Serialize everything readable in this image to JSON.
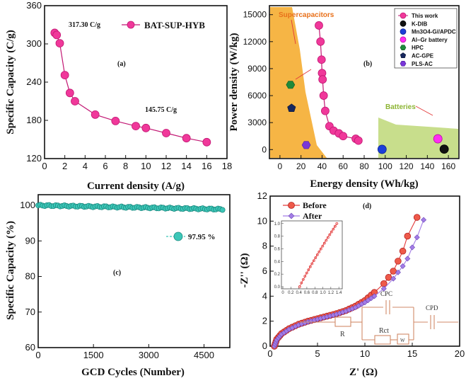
{
  "colors": {
    "pink": "#f0389a",
    "pink_dark": "#c21773",
    "orange_fill": "#f6b545",
    "green_fill": "#c8de8c",
    "teal": "#3cc7b8",
    "red": "#e33a3a",
    "purple": "#a37ce6",
    "black": "#111111",
    "blue": "#1c3fd9",
    "magenta": "#ff2df2",
    "dgreen": "#1f8a3a",
    "navy": "#17275e",
    "violet": "#7a36d8"
  },
  "chart_data": [
    {
      "id": "a",
      "type": "line",
      "panel_label": "(a)",
      "xlabel": "Current density (A/g)",
      "ylabel": "Specific Capacity (C/g)",
      "xlim": [
        0,
        18
      ],
      "ylim": [
        120,
        360
      ],
      "xticks": [
        "0",
        "2",
        "4",
        "6",
        "8",
        "10",
        "12",
        "14",
        "16",
        "18"
      ],
      "yticks": [
        "120",
        "180",
        "240",
        "300",
        "360"
      ],
      "series": [
        {
          "name": "BAT-SUP-HYB",
          "x": [
            1,
            1.2,
            1.5,
            2,
            2.5,
            3,
            5,
            7,
            9,
            10,
            12,
            14,
            16
          ],
          "y": [
            317.3,
            314,
            301,
            251,
            223,
            210,
            189,
            179,
            171,
            168,
            160,
            152,
            145.75
          ]
        }
      ],
      "legend": [
        "BAT-SUP-HYB"
      ],
      "annotations": [
        "317.30 C/g",
        "145.75 C/g"
      ]
    },
    {
      "id": "b",
      "type": "scatter",
      "panel_label": "(b)",
      "xlabel": "Energy density (Wh/kg)",
      "ylabel": "Power density (W/kg)",
      "xlim": [
        -10,
        170
      ],
      "ylim": [
        -1000,
        16000
      ],
      "xticks": [
        "0",
        "20",
        "40",
        "60",
        "80",
        "100",
        "120",
        "140",
        "160"
      ],
      "yticks": [
        "0",
        "3000",
        "6000",
        "9000",
        "12000",
        "15000"
      ],
      "regions": [
        "Supercapacitors",
        "Batteries"
      ],
      "series": [
        {
          "name": "This work",
          "x": [
            37,
            38.5,
            39.5,
            40,
            40.5,
            41.5,
            43,
            47,
            51,
            56,
            60,
            72,
            74.5
          ],
          "y": [
            13800,
            12000,
            10000,
            8500,
            7800,
            6000,
            4300,
            2600,
            2100,
            1800,
            1500,
            1200,
            1000
          ]
        },
        {
          "name": "K-DIB",
          "x": [
            156
          ],
          "y": [
            50
          ]
        },
        {
          "name": "Mn3O4-G//APDC",
          "x": [
            97
          ],
          "y": [
            30
          ]
        },
        {
          "name": "Al–Gr battery",
          "x": [
            150
          ],
          "y": [
            1200
          ]
        },
        {
          "name": "HPC",
          "x": [
            10
          ],
          "y": [
            7200
          ]
        },
        {
          "name": "AC-GPE",
          "x": [
            11
          ],
          "y": [
            4600
          ]
        },
        {
          "name": "PLS-AC",
          "x": [
            25
          ],
          "y": [
            500
          ]
        }
      ],
      "legend": [
        "This work",
        "K-DIB",
        "Mn3O4-G//APDC",
        "Al–Gr battery",
        "HPC",
        "AC-GPE",
        "PLS-AC"
      ]
    },
    {
      "id": "c",
      "type": "scatter",
      "panel_label": "(c)",
      "xlabel": "GCD Cycles (Number)",
      "ylabel": "Specific Capacity  (%)",
      "xlim": [
        0,
        5200
      ],
      "ylim": [
        60,
        103
      ],
      "xticks": [
        "0",
        "1500",
        "3000",
        "4500"
      ],
      "yticks": [
        "60",
        "70",
        "80",
        "90",
        "100"
      ],
      "series": [
        {
          "name": "retention",
          "x_start": 0,
          "x_end": 5000,
          "y_start": 100,
          "y_end": 98.9
        }
      ],
      "legend": [
        "97.95 %"
      ]
    },
    {
      "id": "d",
      "type": "line",
      "panel_label": "(d)",
      "xlabel": "Z' (Ω)",
      "ylabel": "-Z'' (Ω)",
      "xlim": [
        0,
        20
      ],
      "ylim": [
        0,
        12
      ],
      "xticks": [
        "0",
        "5",
        "10",
        "15",
        "20"
      ],
      "yticks": [
        "0",
        "2",
        "4",
        "6",
        "8",
        "10",
        "12"
      ],
      "series": [
        {
          "name": "Before",
          "x": [
            0.45,
            0.7,
            1.2,
            2,
            3,
            4,
            5,
            6,
            7,
            8,
            9,
            10,
            11,
            12,
            12.5,
            13,
            13.5,
            14,
            14.5,
            15.5
          ],
          "y": [
            0,
            0.55,
            1,
            1.4,
            1.75,
            2,
            2.2,
            2.4,
            2.6,
            2.85,
            3.2,
            3.65,
            4.3,
            5.0,
            5.5,
            6.0,
            6.8,
            7.6,
            8.8,
            10.3
          ]
        },
        {
          "name": "After",
          "x": [
            0.45,
            0.7,
            1.2,
            2,
            3,
            4,
            5,
            6,
            7,
            8,
            9,
            10,
            11,
            12,
            13,
            13.5,
            14,
            14.5,
            15,
            15.5,
            16.2
          ],
          "y": [
            0,
            0.5,
            0.95,
            1.35,
            1.7,
            1.95,
            2.15,
            2.35,
            2.55,
            2.8,
            3.1,
            3.5,
            4.0,
            4.6,
            5.4,
            5.9,
            6.4,
            7.0,
            7.9,
            8.7,
            10.1
          ]
        }
      ],
      "legend": [
        "Before",
        "After"
      ],
      "inset": {
        "xticks": [
          "0",
          "0.2",
          "0.4",
          "0.6",
          "0.8",
          "1.0",
          "1.2",
          "1.4"
        ],
        "yticks": [
          "0.0",
          "0.2",
          "0.4",
          "0.6",
          "0.8",
          "1.0"
        ]
      },
      "circuit_labels": [
        "R",
        "Rct",
        "W",
        "CPC",
        "CPD"
      ]
    }
  ]
}
